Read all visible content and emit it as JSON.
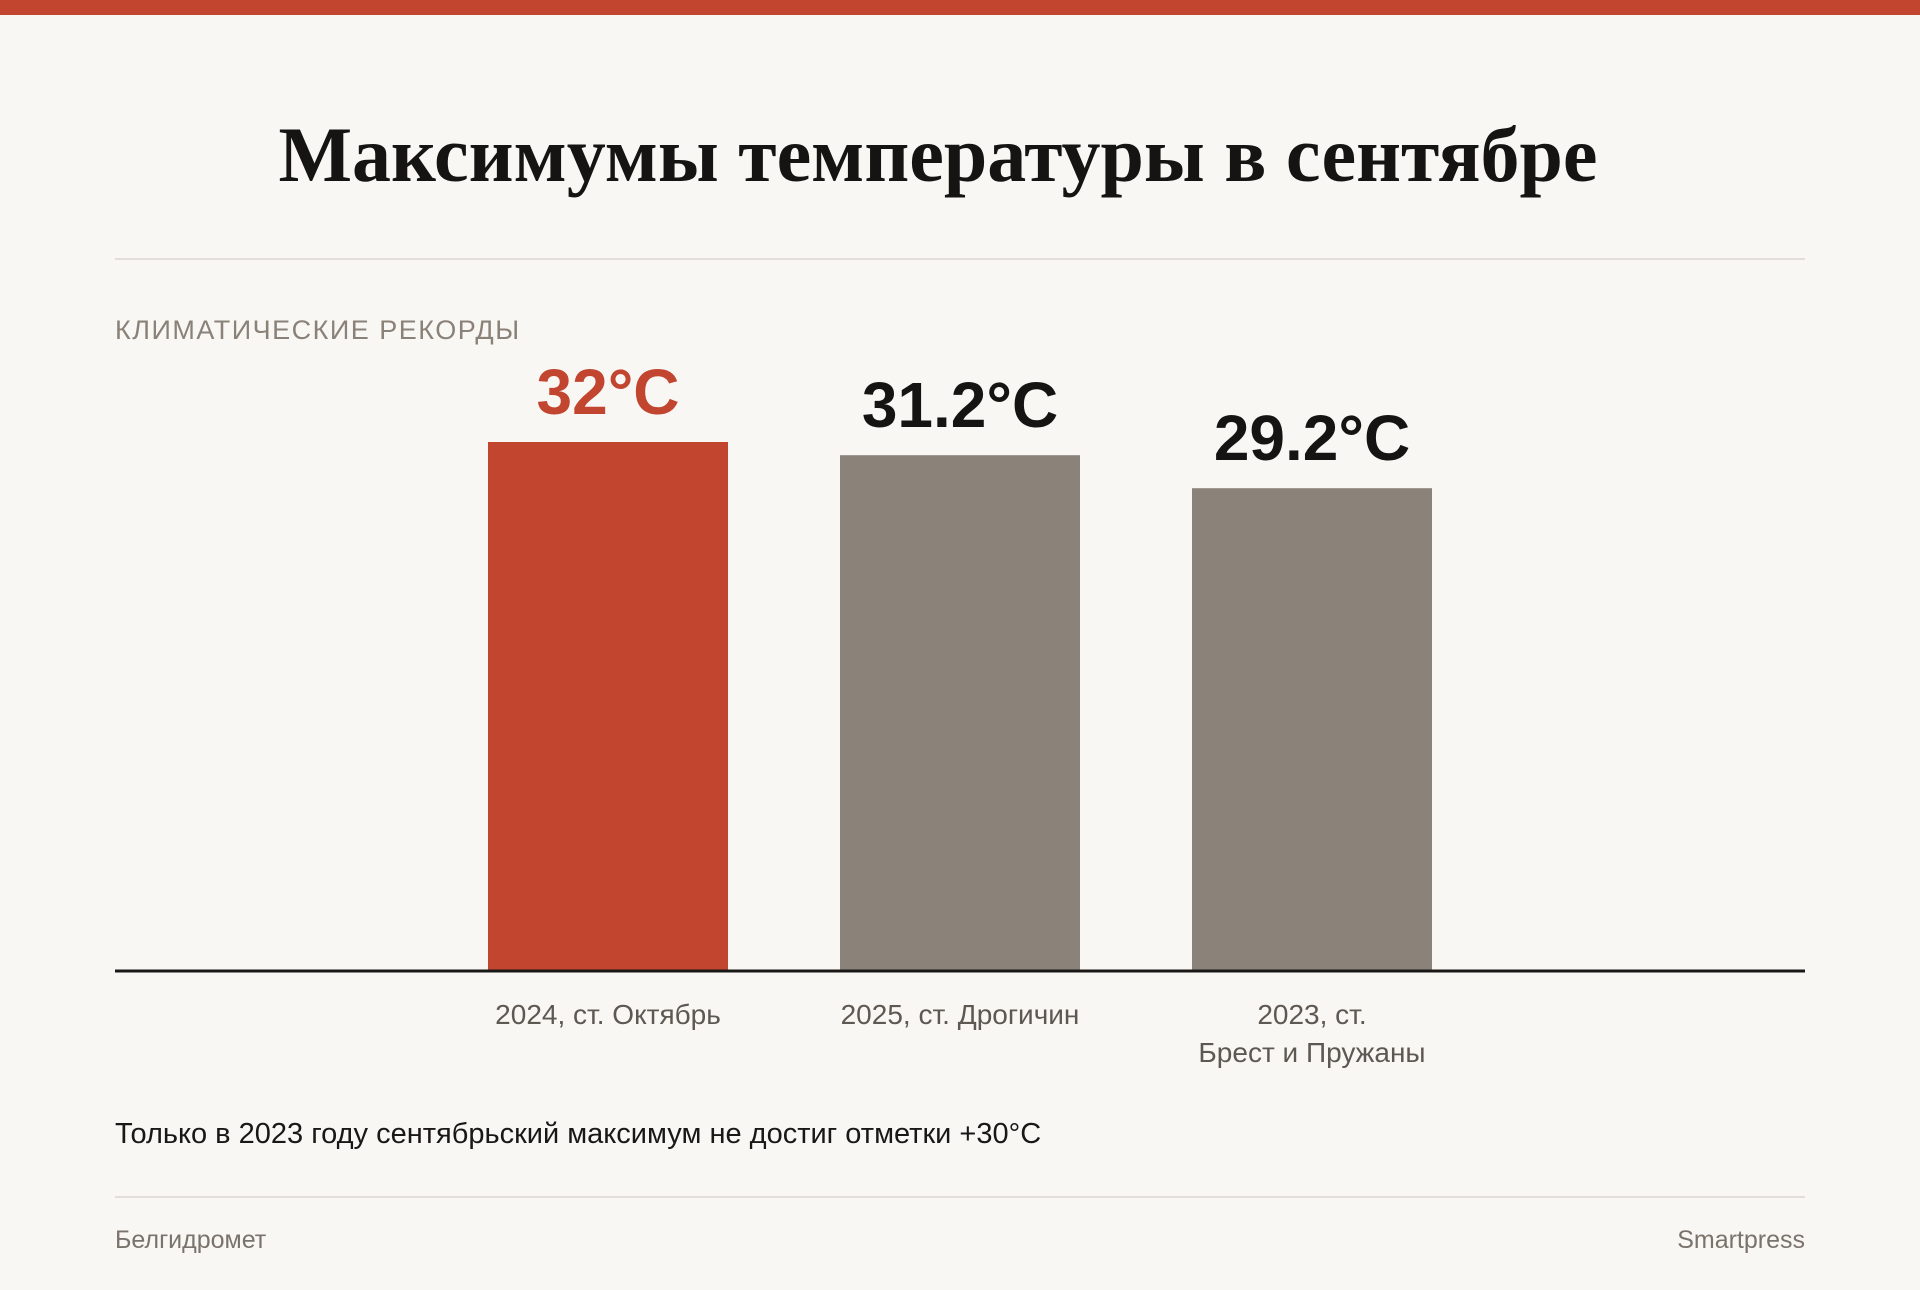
{
  "title": "Максимумы температуры в сентябре",
  "subtitle": "КЛИМАТИЧЕСКИЕ РЕКОРДЫ",
  "note": "Только в 2023 году сентябрьский максимум не достиг отметки +30°C",
  "source": "Белгидромет",
  "brand": "Smartpress",
  "colors": {
    "accent": "#c1452f",
    "bar_default": "#8b837a",
    "text_dark": "#161412",
    "axis": "#1a1816",
    "category_text": "#5e5852"
  },
  "chart_data": {
    "type": "bar",
    "title": "Максимумы температуры в сентябре",
    "categories": [
      [
        "2024, ст. Октябрь"
      ],
      [
        "2025, ст. Дрогичин"
      ],
      [
        "2023, ст.",
        "Брест и Пружаны"
      ]
    ],
    "values": [
      32,
      31.2,
      29.2
    ],
    "value_labels": [
      "32°C",
      "31.2°C",
      "29.2°C"
    ],
    "highlight_index": 0,
    "ylim": [
      0,
      32
    ],
    "xlabel": "",
    "ylabel": "",
    "grid": false,
    "legend": "none"
  }
}
